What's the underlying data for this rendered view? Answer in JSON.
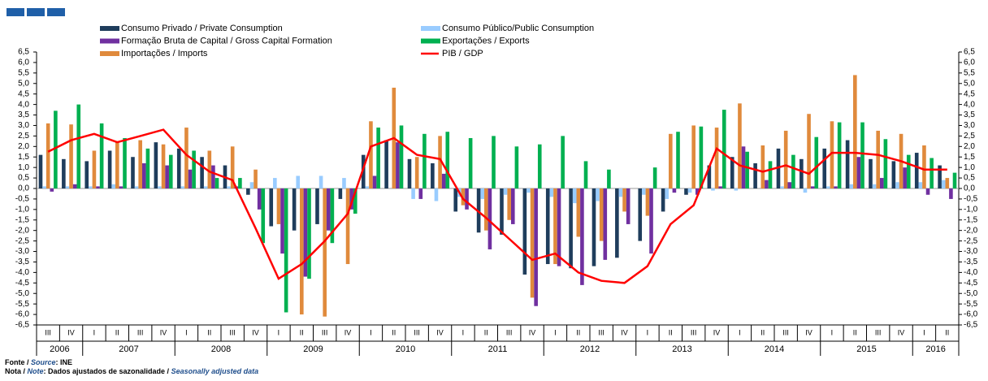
{
  "chart_data": {
    "type": "bar",
    "categories": [
      "III",
      "IV",
      "I",
      "II",
      "III",
      "IV",
      "I",
      "II",
      "III",
      "IV",
      "I",
      "II",
      "III",
      "IV",
      "I",
      "II",
      "III",
      "IV",
      "I",
      "II",
      "III",
      "IV",
      "I",
      "II",
      "III",
      "IV",
      "I",
      "II",
      "III",
      "IV",
      "I",
      "II",
      "III",
      "IV",
      "I",
      "II",
      "III",
      "IV",
      "I",
      "II"
    ],
    "years": [
      "2006",
      "2007",
      "2008",
      "2009",
      "2010",
      "2011",
      "2012",
      "2013",
      "2014",
      "2015",
      "2016"
    ],
    "series": [
      {
        "name": "Consumo Privado / Private Consumption",
        "color": "#1f3d5c",
        "values": [
          1.6,
          1.4,
          1.3,
          1.8,
          1.5,
          2.2,
          1.9,
          1.5,
          1.1,
          -0.3,
          -1.8,
          -2.0,
          -1.7,
          -0.5,
          1.6,
          2.3,
          1.4,
          1.2,
          -1.1,
          -2.1,
          -2.2,
          -4.1,
          -3.6,
          -3.8,
          -3.7,
          -3.3,
          -2.5,
          -1.1,
          -0.3,
          1.1,
          1.5,
          1.2,
          1.9,
          1.4,
          1.9,
          2.3,
          1.4,
          1.3,
          1.7,
          1.1
        ]
      },
      {
        "name": "Consumo Público/Public Consumption",
        "color": "#99ccff",
        "values": [
          0.1,
          0.1,
          0.1,
          0.2,
          0.1,
          0.1,
          0.1,
          0.1,
          0.1,
          0.3,
          0.5,
          0.6,
          0.6,
          0.5,
          0.1,
          0.0,
          -0.5,
          -0.6,
          -0.4,
          -0.5,
          -0.3,
          -0.2,
          -0.4,
          -0.7,
          -0.6,
          -0.4,
          -0.3,
          -0.5,
          -0.2,
          -0.1,
          -0.1,
          0.0,
          0.1,
          -0.2,
          0.1,
          0.2,
          0.2,
          0.3,
          0.3,
          0.4
        ]
      },
      {
        "name": "Formação Bruta de Capital / Gross Capital Formation",
        "color": "#7030a0",
        "values": [
          -0.15,
          0.2,
          0.1,
          0.1,
          1.2,
          1.1,
          0.9,
          1.1,
          0.1,
          -1.0,
          -3.1,
          -4.2,
          -2.0,
          -1.0,
          0.6,
          2.2,
          -0.5,
          0.7,
          -1.0,
          -2.9,
          -1.7,
          -5.6,
          -3.7,
          -4.6,
          -3.4,
          -1.7,
          -3.1,
          -0.2,
          -0.3,
          0.1,
          2.0,
          0.4,
          0.3,
          0.1,
          0.1,
          1.5,
          0.5,
          1.0,
          -0.3,
          -0.5
        ]
      },
      {
        "name": "Exportações / Exports",
        "color": "#00b050",
        "values": [
          3.7,
          4.0,
          3.1,
          2.4,
          1.9,
          1.6,
          1.8,
          0.5,
          0.5,
          -2.6,
          -5.9,
          -4.3,
          -2.6,
          -1.2,
          2.9,
          3.0,
          2.6,
          2.7,
          2.4,
          2.5,
          2.0,
          2.1,
          2.5,
          1.3,
          0.9,
          0.0,
          1.0,
          2.7,
          2.95,
          3.75,
          1.75,
          1.3,
          1.6,
          2.45,
          3.15,
          3.15,
          2.35,
          1.6,
          1.45,
          0.75
        ]
      },
      {
        "name": "Importações / Imports",
        "color": "#e08a3c",
        "values": [
          3.1,
          3.05,
          1.8,
          2.2,
          2.3,
          2.1,
          2.9,
          1.8,
          2.0,
          0.9,
          -1.7,
          -6.0,
          -6.1,
          -3.6,
          3.2,
          4.8,
          1.5,
          2.5,
          -0.8,
          -2.0,
          -1.5,
          -5.2,
          -3.6,
          -2.3,
          -2.5,
          -1.1,
          -1.3,
          2.6,
          3.0,
          2.9,
          4.05,
          2.05,
          2.75,
          3.55,
          3.2,
          5.4,
          2.75,
          2.6,
          2.05,
          0.5
        ]
      },
      {
        "name": "PIB / GDP",
        "color": "#ff0000",
        "type": "line",
        "values": [
          1.75,
          2.3,
          2.6,
          2.2,
          2.5,
          2.8,
          1.6,
          0.8,
          0.4,
          -1.9,
          -4.3,
          -3.6,
          -2.5,
          -1.2,
          2.0,
          2.4,
          1.6,
          1.4,
          -0.5,
          -1.4,
          -2.4,
          -3.4,
          -3.1,
          -4.0,
          -4.4,
          -4.5,
          -3.7,
          -1.7,
          -0.8,
          1.9,
          1.1,
          0.8,
          1.1,
          0.7,
          1.7,
          1.7,
          1.6,
          1.3,
          0.9,
          0.9
        ]
      }
    ],
    "ylim": [
      -6.5,
      6.5
    ],
    "yticks": [
      {
        "value": 6.5,
        "label": "6,5"
      },
      {
        "value": 6.0,
        "label": "6,0"
      },
      {
        "value": 5.5,
        "label": "5,5"
      },
      {
        "value": 5.0,
        "label": "5,0"
      },
      {
        "value": 4.5,
        "label": "4,5"
      },
      {
        "value": 4.0,
        "label": "4,0"
      },
      {
        "value": 3.5,
        "label": "3,5"
      },
      {
        "value": 3.0,
        "label": "3,0"
      },
      {
        "value": 2.5,
        "label": "2,5"
      },
      {
        "value": 2.0,
        "label": "2,0"
      },
      {
        "value": 1.5,
        "label": "1,5"
      },
      {
        "value": 1.0,
        "label": "1,0"
      },
      {
        "value": 0.5,
        "label": "0,5"
      },
      {
        "value": 0.0,
        "label": "0,0"
      },
      {
        "value": -0.5,
        "label": "-0,5"
      },
      {
        "value": -1.0,
        "label": "-1,0"
      },
      {
        "value": -1.5,
        "label": "-1,5"
      },
      {
        "value": -2.0,
        "label": "-2,0"
      },
      {
        "value": -2.5,
        "label": "-2,5"
      },
      {
        "value": -3.0,
        "label": "-3,0"
      },
      {
        "value": -3.5,
        "label": "-3,5"
      },
      {
        "value": -4.0,
        "label": "-4,0"
      },
      {
        "value": -4.5,
        "label": "-4,5"
      },
      {
        "value": -5.0,
        "label": "-5,0"
      },
      {
        "value": -5.5,
        "label": "-5,5"
      },
      {
        "value": -6.0,
        "label": "-6,0"
      },
      {
        "value": -6.5,
        "label": "-6,5"
      }
    ],
    "y_right_axis": true,
    "footnotes": {
      "source_prefix": "Fonte / ",
      "source_word": "Source",
      "source_text": ": INE",
      "note_prefix": "Nota / ",
      "note_word": "Note",
      "note_text": ": Dados ajustados de sazonalidade / ",
      "note_en": "Seasonally adjusted data"
    }
  }
}
